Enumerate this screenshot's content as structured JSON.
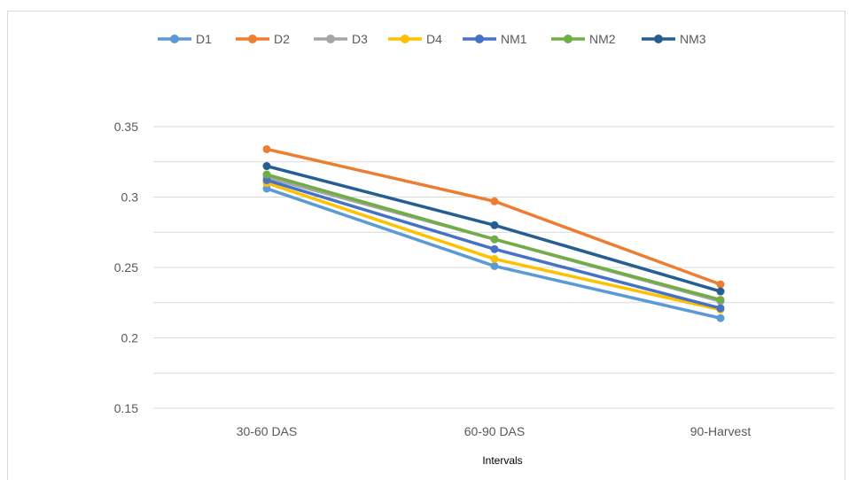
{
  "chart_data": {
    "type": "line",
    "title": "",
    "xlabel": "Intervals",
    "ylabel": "",
    "categories": [
      "30-60 DAS",
      "60-90 DAS",
      "90-Harvest"
    ],
    "ylim": [
      0.15,
      0.35
    ],
    "yticks": [
      "0.35",
      "0.3",
      "0.25",
      "0.2",
      "0.15"
    ],
    "ytick_values": [
      0.35,
      0.3,
      0.25,
      0.2,
      0.15
    ],
    "grid": true,
    "legend_position": "top",
    "series": [
      {
        "name": "D1",
        "color": "#5b9bd5",
        "values": [
          0.306,
          0.251,
          0.214
        ]
      },
      {
        "name": "D2",
        "color": "#ed7d31",
        "values": [
          0.334,
          0.297,
          0.238
        ]
      },
      {
        "name": "D3",
        "color": "#a5a5a5",
        "values": [
          0.314,
          0.27,
          0.226
        ]
      },
      {
        "name": "D4",
        "color": "#ffc000",
        "values": [
          0.31,
          0.256,
          0.22
        ]
      },
      {
        "name": "NM1",
        "color": "#4472c4",
        "values": [
          0.312,
          0.263,
          0.221
        ]
      },
      {
        "name": "NM2",
        "color": "#70ad47",
        "values": [
          0.316,
          0.27,
          0.227
        ]
      },
      {
        "name": "NM3",
        "color": "#255e91",
        "values": [
          0.322,
          0.28,
          0.233
        ]
      }
    ]
  }
}
